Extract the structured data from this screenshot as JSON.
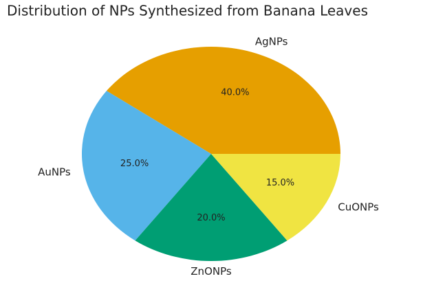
{
  "chart_data": {
    "type": "pie",
    "title": "Distribution of NPs Synthesized from Banana Leaves",
    "categories": [
      "AgNPs",
      "AuNPs",
      "ZnONPs",
      "CuONPs"
    ],
    "values": [
      40,
      25,
      20,
      15
    ],
    "value_labels": [
      "40.0%",
      "25.0%",
      "20.0%",
      "15.0%"
    ],
    "colors": [
      "#e69f00",
      "#56b4e9",
      "#009e73",
      "#f0e442"
    ]
  }
}
